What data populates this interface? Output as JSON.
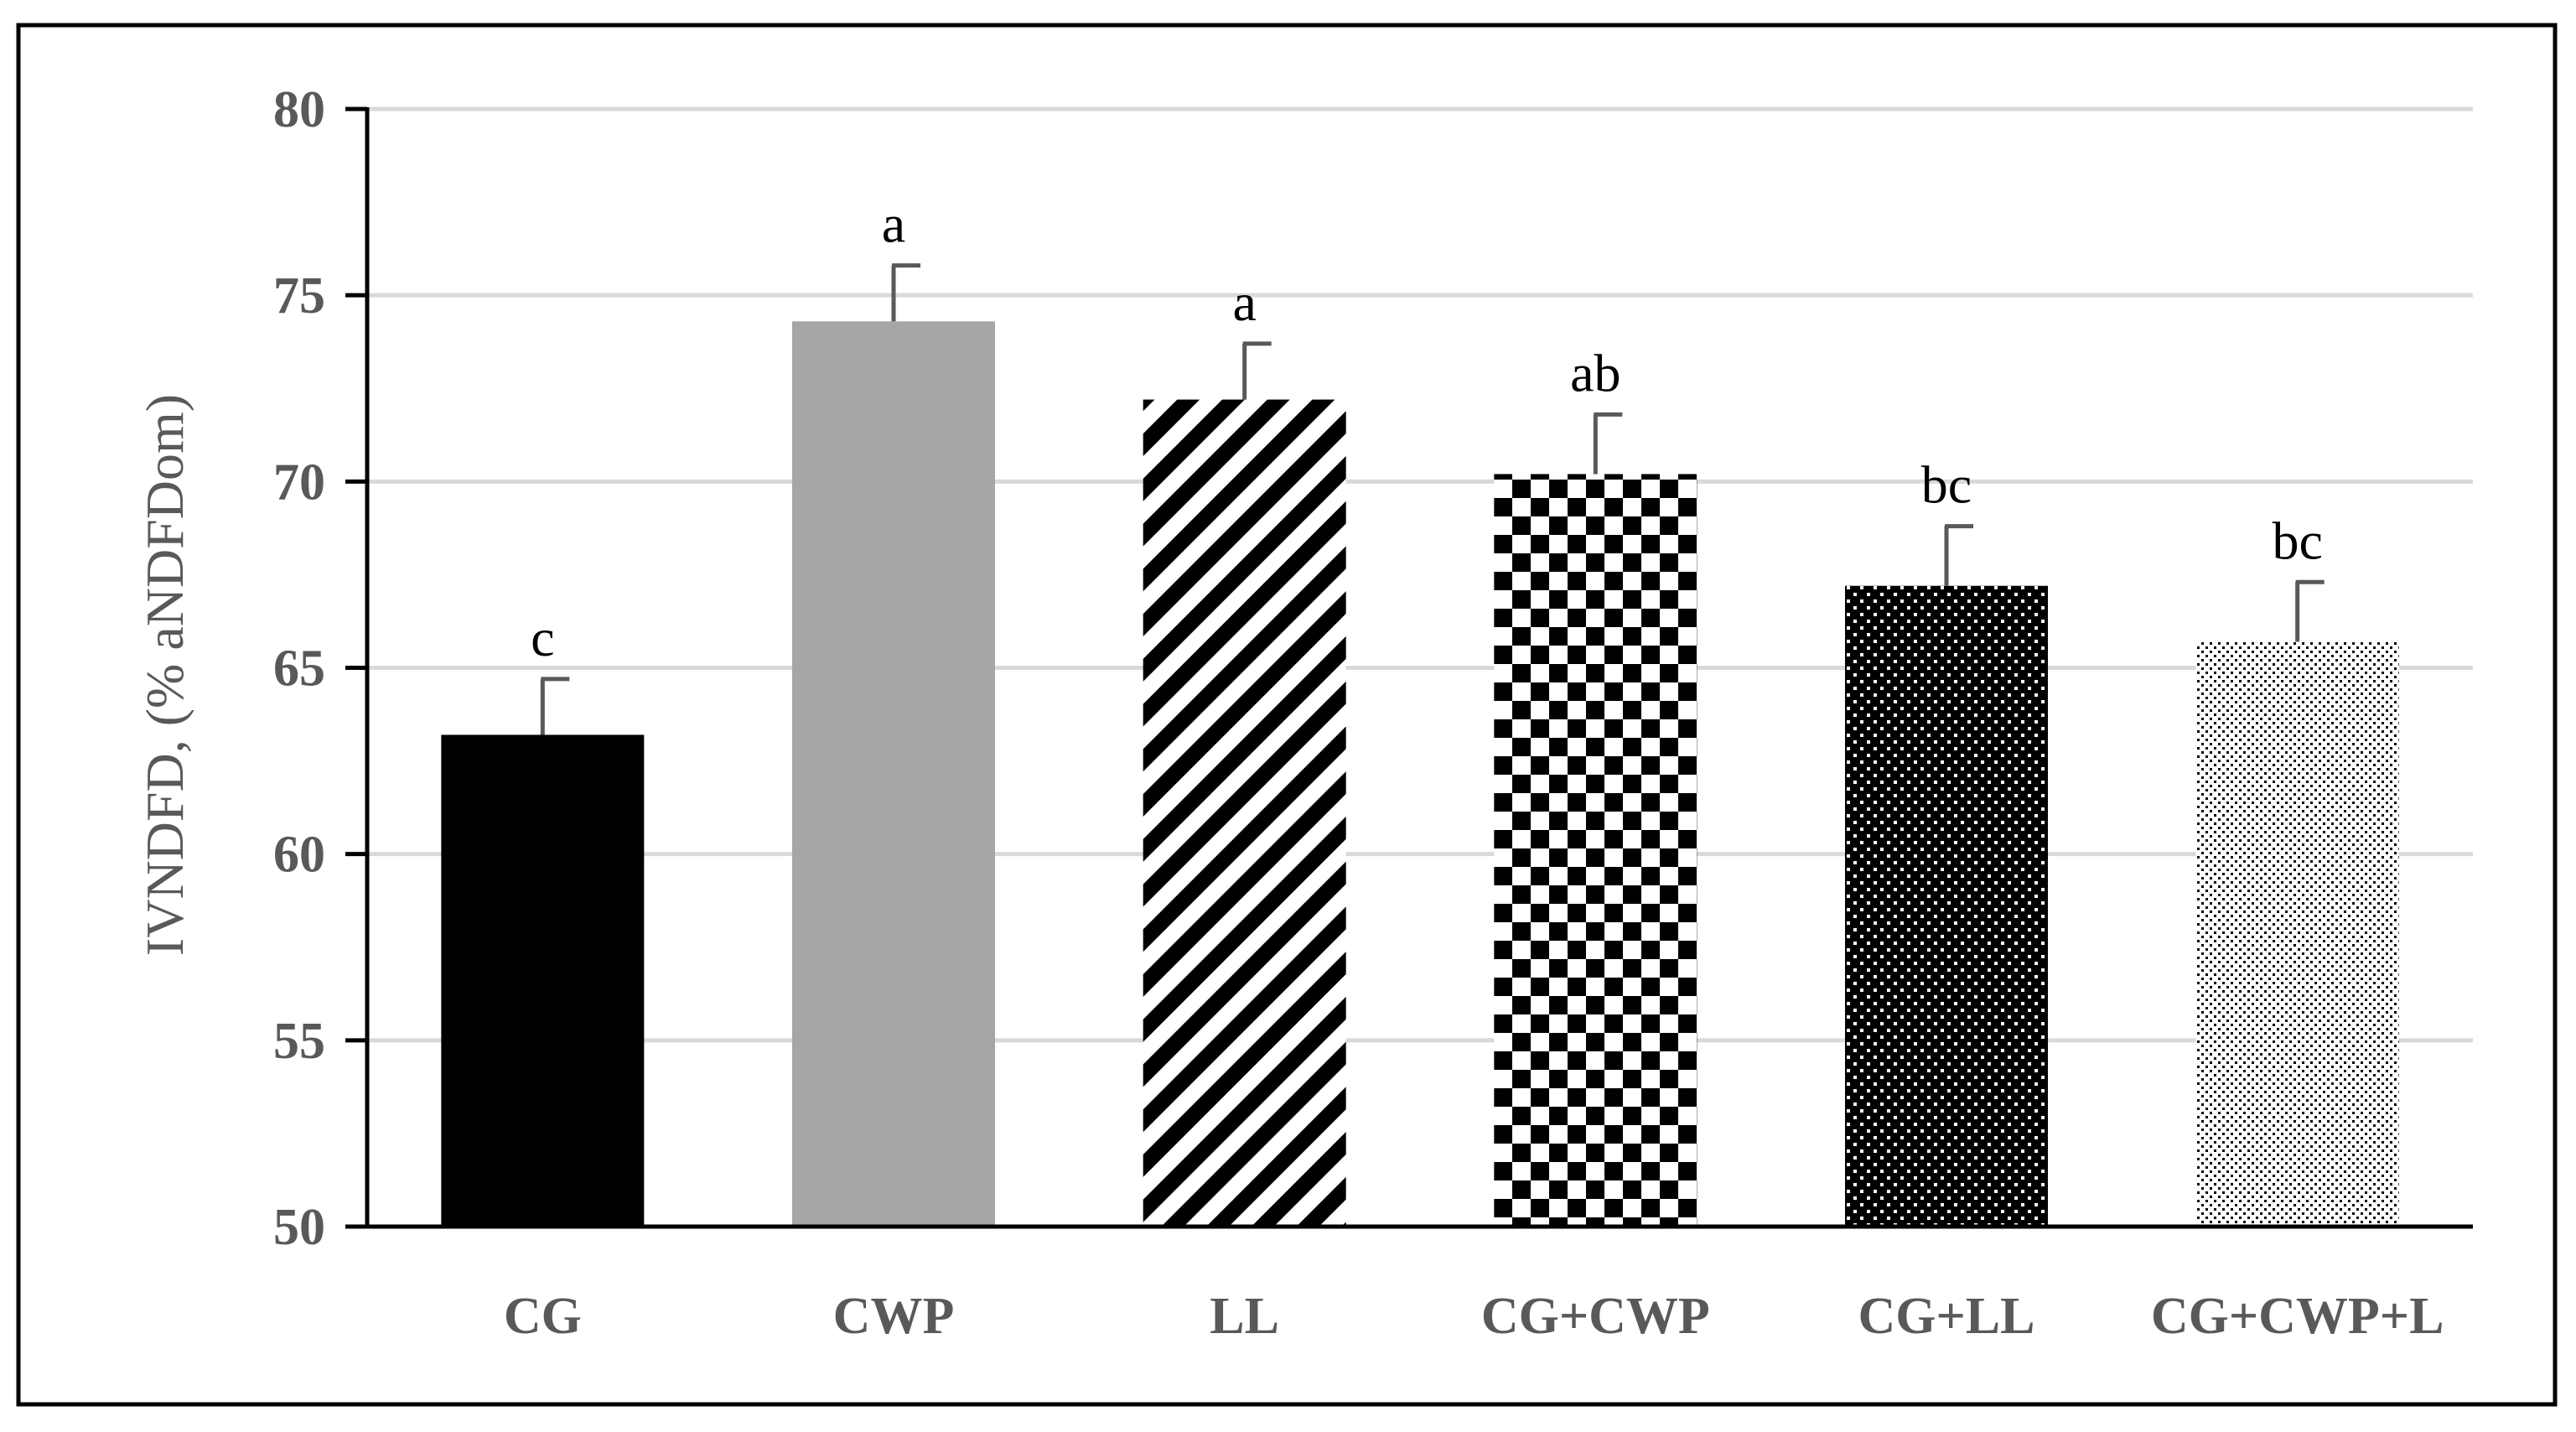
{
  "chart_data": {
    "type": "bar",
    "title": "",
    "xlabel": "",
    "ylabel": "IVNDFD, (% aNDFDom)",
    "ylim": [
      50,
      80
    ],
    "yticks": [
      50,
      55,
      60,
      65,
      70,
      75,
      80
    ],
    "grid": true,
    "categories": [
      "CG",
      "CWP",
      "LL",
      "CG+CWP",
      "CG+LL",
      "CG+CWP+L"
    ],
    "values": [
      63.2,
      74.3,
      72.2,
      70.2,
      67.2,
      65.7
    ],
    "errors": [
      1.5,
      1.5,
      1.5,
      1.6,
      1.6,
      1.6
    ],
    "significance_letters": [
      "c",
      "a",
      "a",
      "ab",
      "bc",
      "bc"
    ],
    "bar_fills": [
      "solid-black",
      "solid-gray",
      "diagonal-stripes",
      "checkerboard",
      "dots-dense",
      "dots-fine"
    ]
  },
  "colors": {
    "black": "#000000",
    "gray_bar": "#a6a6a6",
    "axis_text": "#595959",
    "gridline": "#d9d9d9",
    "error_bar": "#595959"
  }
}
